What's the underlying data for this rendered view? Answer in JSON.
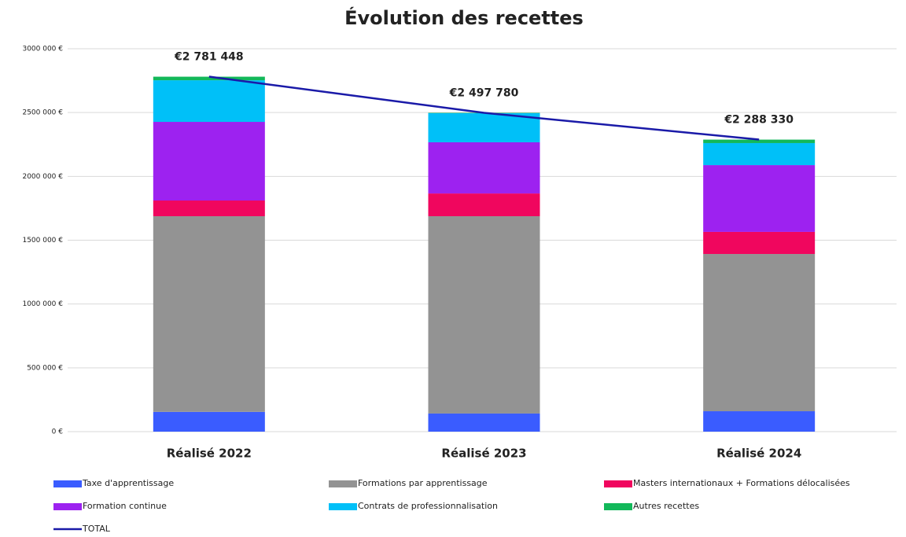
{
  "chart_data": {
    "type": "bar",
    "stacked": true,
    "title": "Évolution des recettes",
    "categories": [
      "Réalisé 2022",
      "Réalisé 2023",
      "Réalisé 2024"
    ],
    "series": [
      {
        "name": "Taxe d'apprentissage",
        "color": "#3a5cff",
        "values": [
          155000,
          142000,
          160000
        ]
      },
      {
        "name": "Formations par apprentissage",
        "color": "#939393",
        "values": [
          1533000,
          1546000,
          1232000
        ]
      },
      {
        "name": "Masters internationaux + Formations délocalisées",
        "color": "#f0065e",
        "values": [
          123000,
          178000,
          173000
        ]
      },
      {
        "name": "Formation continue",
        "color": "#9d22f0",
        "values": [
          616000,
          401000,
          523000
        ]
      },
      {
        "name": "Contrats de professionnalisation",
        "color": "#00c0f8",
        "values": [
          326000,
          228000,
          173000
        ]
      },
      {
        "name": "Autres recettes",
        "color": "#12b85a",
        "values": [
          28000,
          3000,
          27000
        ]
      },
      {
        "name": "TOTAL",
        "type": "line",
        "color": "#1a1aa8",
        "values": [
          2781448,
          2497780,
          2288330
        ],
        "value_labels": [
          "€2 781 448",
          "€2 497 780",
          "€2 288 330"
        ]
      }
    ],
    "ylim": [
      0,
      3000000
    ],
    "yticks": [
      {
        "value": 0,
        "label": "0 €"
      },
      {
        "value": 500000,
        "label": "500 000 €"
      },
      {
        "value": 1000000,
        "label": "1000 000 €"
      },
      {
        "value": 1500000,
        "label": "1500 000 €"
      },
      {
        "value": 2000000,
        "label": "2000 000 €"
      },
      {
        "value": 2500000,
        "label": "2500 000 €"
      },
      {
        "value": 3000000,
        "label": "3000 000 €"
      }
    ],
    "grid": true,
    "legend": "bottom"
  }
}
